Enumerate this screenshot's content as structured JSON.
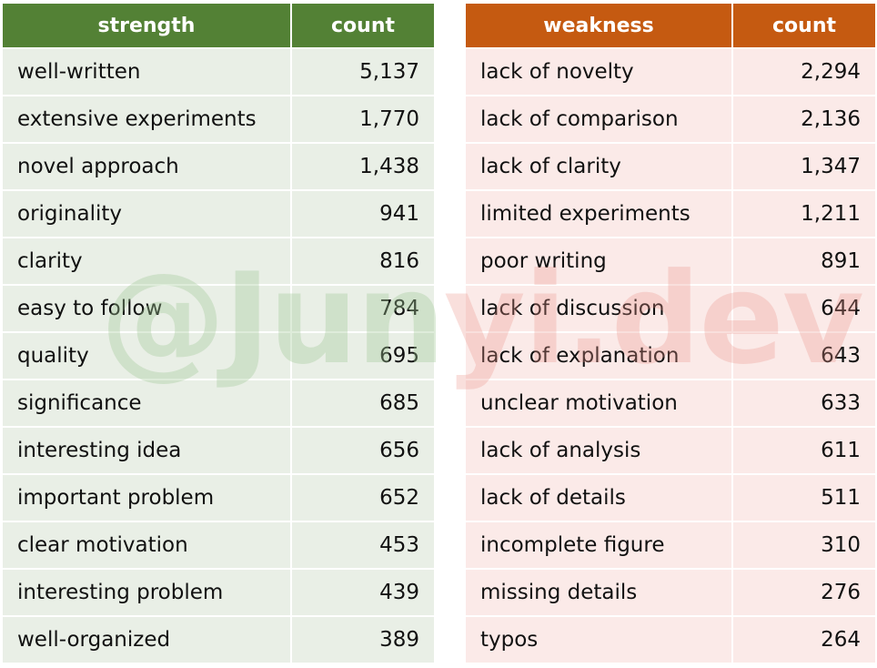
{
  "strength_table": {
    "headers": [
      "strength",
      "count"
    ],
    "rows": [
      {
        "label": "well-written",
        "count": "5,137"
      },
      {
        "label": "extensive experiments",
        "count": "1,770"
      },
      {
        "label": "novel approach",
        "count": "1,438"
      },
      {
        "label": "originality",
        "count": "941"
      },
      {
        "label": "clarity",
        "count": "816"
      },
      {
        "label": "easy to follow",
        "count": "784"
      },
      {
        "label": "quality",
        "count": "695"
      },
      {
        "label": "significance",
        "count": "685"
      },
      {
        "label": "interesting idea",
        "count": "656"
      },
      {
        "label": "important problem",
        "count": "652"
      },
      {
        "label": "clear motivation",
        "count": "453"
      },
      {
        "label": "interesting problem",
        "count": "439"
      },
      {
        "label": "well-organized",
        "count": "389"
      }
    ],
    "header_color": "#538135",
    "row_color": "#e9efe6"
  },
  "weakness_table": {
    "headers": [
      "weakness",
      "count"
    ],
    "rows": [
      {
        "label": "lack of novelty",
        "count": "2,294"
      },
      {
        "label": "lack of comparison",
        "count": "2,136"
      },
      {
        "label": "lack of clarity",
        "count": "1,347"
      },
      {
        "label": "limited experiments",
        "count": "1,211"
      },
      {
        "label": "poor writing",
        "count": "891"
      },
      {
        "label": "lack of discussion",
        "count": "644"
      },
      {
        "label": "lack of explanation",
        "count": "643"
      },
      {
        "label": "unclear motivation",
        "count": "633"
      },
      {
        "label": "lack of analysis",
        "count": "611"
      },
      {
        "label": "lack of details",
        "count": "511"
      },
      {
        "label": "incomplete figure",
        "count": "310"
      },
      {
        "label": "missing details",
        "count": "276"
      },
      {
        "label": "typos",
        "count": "264"
      }
    ],
    "header_color": "#c55a11",
    "row_color": "#fbeae8"
  },
  "watermark": {
    "left_text": "@Jun",
    "right_text": "yi.dev"
  }
}
